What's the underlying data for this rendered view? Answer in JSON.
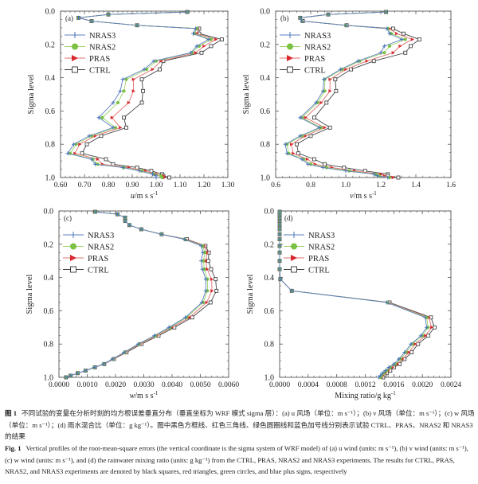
{
  "chart_data": [
    {
      "type": "line",
      "panel_label": "(a)",
      "xlabel": "u/m s-1",
      "xlabel_var": "u",
      "xlabel_unit": "/m s",
      "ylabel": "Sigma level",
      "xlim": [
        0.6,
        1.3
      ],
      "ylim": [
        1.0,
        0.0
      ],
      "xticks": [
        0.6,
        0.7,
        0.8,
        0.9,
        1.0,
        1.1,
        1.2,
        1.3
      ],
      "xtick_labels": [
        "0.60",
        "0.70",
        "0.80",
        "0.90",
        "1.00",
        "1.10",
        "1.20",
        "1.30"
      ],
      "yticks": [
        0.0,
        0.2,
        0.4,
        0.6,
        0.8,
        1.0
      ],
      "ytick_labels": [
        "0.0",
        "0.2",
        "0.4",
        "0.6",
        "0.8",
        "1.0"
      ],
      "legend": "top-left",
      "y": [
        0.005,
        0.02,
        0.04,
        0.06,
        0.085,
        0.105,
        0.135,
        0.17,
        0.21,
        0.25,
        0.3,
        0.35,
        0.41,
        0.48,
        0.55,
        0.64,
        0.7,
        0.75,
        0.8,
        0.855,
        0.89,
        0.92,
        0.94,
        0.96,
        0.98,
        0.99,
        1.0
      ],
      "series": [
        {
          "name": "NRAS3",
          "values": [
            1.13,
            0.8,
            0.675,
            0.73,
            0.92,
            1.165,
            1.155,
            1.22,
            1.17,
            1.145,
            0.99,
            0.95,
            0.86,
            0.85,
            0.82,
            0.76,
            0.82,
            0.72,
            0.655,
            0.63,
            0.73,
            0.745,
            0.86,
            0.93,
            0.985,
            1.0,
            1.0
          ]
        },
        {
          "name": "NRAS2",
          "values": [
            1.13,
            0.8,
            0.675,
            0.73,
            0.92,
            1.17,
            1.16,
            1.23,
            1.18,
            1.15,
            1.0,
            0.96,
            0.875,
            0.865,
            0.84,
            0.775,
            0.83,
            0.73,
            0.665,
            0.64,
            0.735,
            0.755,
            0.865,
            0.94,
            0.99,
            1.02,
            1.025
          ]
        },
        {
          "name": "PRAS",
          "values": [
            1.13,
            0.8,
            0.675,
            0.73,
            0.92,
            1.175,
            1.17,
            1.25,
            1.2,
            1.165,
            1.02,
            0.985,
            0.905,
            0.905,
            0.885,
            0.815,
            0.85,
            0.745,
            0.68,
            0.66,
            0.755,
            0.775,
            0.885,
            0.955,
            1.0,
            1.03,
            1.035
          ]
        },
        {
          "name": "CTRL",
          "values": [
            1.13,
            0.8,
            0.675,
            0.73,
            0.92,
            1.18,
            1.18,
            1.275,
            1.23,
            1.19,
            1.03,
            1.015,
            0.94,
            0.945,
            0.94,
            0.865,
            0.875,
            0.77,
            0.71,
            0.69,
            0.79,
            0.82,
            0.92,
            0.98,
            1.025,
            1.03,
            1.055
          ]
        }
      ]
    },
    {
      "type": "line",
      "panel_label": "(b)",
      "xlabel": "v/m s-1",
      "xlabel_var": "v",
      "xlabel_unit": "/m s",
      "ylabel": "Sigma level",
      "xlim": [
        0.6,
        1.6
      ],
      "ylim": [
        1.0,
        0.0
      ],
      "xticks": [
        0.6,
        0.8,
        1.0,
        1.2,
        1.4,
        1.6
      ],
      "xtick_labels": [
        "0.6",
        "0.8",
        "1.0",
        "1.2",
        "1.4",
        "1.6"
      ],
      "yticks": [
        0.0,
        0.2,
        0.4,
        0.6,
        0.8,
        1.0
      ],
      "ytick_labels": [
        "0.0",
        "0.2",
        "0.4",
        "0.6",
        "0.8",
        "1.0"
      ],
      "legend": "top-left",
      "y": [
        0.005,
        0.02,
        0.04,
        0.06,
        0.085,
        0.105,
        0.135,
        0.17,
        0.21,
        0.25,
        0.3,
        0.35,
        0.41,
        0.48,
        0.55,
        0.64,
        0.7,
        0.75,
        0.8,
        0.855,
        0.89,
        0.92,
        0.94,
        0.96,
        0.98,
        0.99,
        1.0
      ],
      "series": [
        {
          "name": "NRAS3",
          "values": [
            1.23,
            0.9,
            0.74,
            0.75,
            1.0,
            1.235,
            1.25,
            1.32,
            1.22,
            1.2,
            1.07,
            0.97,
            0.875,
            0.87,
            0.83,
            0.74,
            0.85,
            0.74,
            0.655,
            0.665,
            0.75,
            0.785,
            0.87,
            1.0,
            1.16,
            1.18,
            1.24
          ]
        },
        {
          "name": "NRAS2",
          "values": [
            1.23,
            0.9,
            0.74,
            0.75,
            1.0,
            1.24,
            1.26,
            1.34,
            1.25,
            1.22,
            1.08,
            0.98,
            0.88,
            0.88,
            0.84,
            0.75,
            0.86,
            0.75,
            0.665,
            0.675,
            0.76,
            0.8,
            0.89,
            1.02,
            1.17,
            1.19,
            1.25
          ]
        },
        {
          "name": "PRAS",
          "values": [
            1.23,
            0.9,
            0.74,
            0.75,
            1.0,
            1.25,
            1.29,
            1.38,
            1.31,
            1.27,
            1.12,
            1.0,
            0.91,
            0.91,
            0.86,
            0.77,
            0.88,
            0.77,
            0.69,
            0.7,
            0.78,
            0.825,
            0.92,
            1.05,
            1.2,
            1.22,
            1.27
          ]
        },
        {
          "name": "CTRL",
          "values": [
            1.23,
            0.9,
            0.74,
            0.755,
            1.005,
            1.27,
            1.33,
            1.42,
            1.37,
            1.34,
            1.16,
            1.03,
            0.94,
            0.945,
            0.89,
            0.82,
            0.91,
            0.8,
            0.72,
            0.73,
            0.82,
            0.88,
            0.99,
            1.11,
            1.24,
            1.24,
            1.3
          ]
        }
      ]
    },
    {
      "type": "line",
      "panel_label": "(c)",
      "xlabel": "w/m s-1",
      "xlabel_var": "w",
      "xlabel_unit": "/m s",
      "ylabel": "Sigma level",
      "xlim": [
        0.0,
        0.006
      ],
      "ylim": [
        1.0,
        0.0
      ],
      "xticks": [
        0.0,
        0.001,
        0.002,
        0.003,
        0.004,
        0.005,
        0.006
      ],
      "xtick_labels": [
        "0.0000",
        "0.0010",
        "0.0020",
        "0.0030",
        "0.0040",
        "0.0050",
        "0.0060"
      ],
      "yticks": [
        0.0,
        0.2,
        0.4,
        0.6,
        0.8,
        1.0
      ],
      "ytick_labels": [
        "0.0",
        "0.2",
        "0.4",
        "0.6",
        "0.8",
        "1.0"
      ],
      "legend": "top-left",
      "y": [
        0.005,
        0.02,
        0.04,
        0.06,
        0.085,
        0.11,
        0.14,
        0.17,
        0.21,
        0.25,
        0.3,
        0.35,
        0.41,
        0.48,
        0.55,
        0.64,
        0.7,
        0.75,
        0.8,
        0.85,
        0.89,
        0.92,
        0.94,
        0.96,
        0.975,
        0.99,
        1.0
      ],
      "series": [
        {
          "name": "NRAS3",
          "values": [
            0.00128,
            0.00207,
            0.00234,
            0.00234,
            0.00249,
            0.00291,
            0.00361,
            0.00443,
            0.00503,
            0.00509,
            0.00503,
            0.00507,
            0.00519,
            0.00519,
            0.00505,
            0.00447,
            0.00389,
            0.00337,
            0.0028,
            0.0023,
            0.00189,
            0.00157,
            0.00125,
            0.00093,
            0.00066,
            0.00041,
            0.00025
          ]
        },
        {
          "name": "NRAS2",
          "values": [
            0.00128,
            0.00207,
            0.00234,
            0.00234,
            0.00249,
            0.00291,
            0.00361,
            0.00445,
            0.00508,
            0.00516,
            0.00511,
            0.00514,
            0.00525,
            0.00525,
            0.0051,
            0.00452,
            0.00393,
            0.00341,
            0.00283,
            0.00232,
            0.0019,
            0.00158,
            0.00125,
            0.00093,
            0.00066,
            0.00041,
            0.00025
          ]
        },
        {
          "name": "PRAS",
          "values": [
            0.00128,
            0.00207,
            0.00234,
            0.00234,
            0.00249,
            0.00291,
            0.00362,
            0.00448,
            0.00514,
            0.00524,
            0.00519,
            0.00524,
            0.0054,
            0.00541,
            0.00522,
            0.00462,
            0.00399,
            0.00346,
            0.00287,
            0.00235,
            0.00192,
            0.00159,
            0.00126,
            0.00093,
            0.00066,
            0.00041,
            0.00025
          ]
        },
        {
          "name": "CTRL",
          "values": [
            0.00128,
            0.00207,
            0.00234,
            0.00234,
            0.00249,
            0.00291,
            0.00363,
            0.00452,
            0.00518,
            0.0053,
            0.00528,
            0.00538,
            0.00554,
            0.00557,
            0.00536,
            0.00471,
            0.00408,
            0.00352,
            0.00292,
            0.00239,
            0.00194,
            0.0016,
            0.00127,
            0.00094,
            0.00066,
            0.00041,
            0.00025
          ]
        }
      ]
    },
    {
      "type": "line",
      "panel_label": "(d)",
      "xlabel": "Mixing ratio/g kg-1",
      "xlabel_var": "",
      "xlabel_unit": "Mixing ratio/g kg",
      "ylabel": "Sigma level",
      "xlim": [
        0.0,
        0.0024
      ],
      "ylim": [
        1.0,
        0.0
      ],
      "xticks": [
        0.0,
        0.0004,
        0.0008,
        0.0012,
        0.0016,
        0.002,
        0.0024
      ],
      "xtick_labels": [
        "0.0000",
        "0.0004",
        "0.0008",
        "0.0012",
        "0.0016",
        "0.0020",
        "0.0024"
      ],
      "yticks": [
        0.0,
        0.2,
        0.4,
        0.6,
        0.8,
        1.0
      ],
      "ytick_labels": [
        "0.0",
        "0.2",
        "0.4",
        "0.6",
        "0.8",
        "1.0"
      ],
      "legend": "top-left",
      "y": [
        0.005,
        0.02,
        0.04,
        0.06,
        0.085,
        0.11,
        0.14,
        0.17,
        0.21,
        0.25,
        0.3,
        0.35,
        0.41,
        0.48,
        0.55,
        0.64,
        0.7,
        0.75,
        0.8,
        0.85,
        0.89,
        0.92,
        0.94,
        0.96,
        0.975,
        0.99,
        1.0
      ],
      "series": [
        {
          "name": "NRAS3",
          "values": [
            0,
            0,
            0,
            0,
            0,
            0,
            0,
            0,
            0,
            0,
            0,
            0,
            1e-05,
            0.00017,
            0.0015,
            0.00204,
            0.00206,
            0.00198,
            0.00184,
            0.00175,
            0.00167,
            0.0016,
            0.00153,
            0.00148,
            0.00144,
            0.00141,
            0.00139
          ]
        },
        {
          "name": "NRAS2",
          "values": [
            0,
            0,
            0,
            0,
            0,
            0,
            0,
            0,
            0,
            0,
            0,
            0,
            1e-05,
            0.00017,
            0.00151,
            0.00206,
            0.00208,
            0.002,
            0.00186,
            0.00177,
            0.00169,
            0.00162,
            0.00155,
            0.0015,
            0.00146,
            0.00143,
            0.00141
          ]
        },
        {
          "name": "PRAS",
          "values": [
            0,
            0,
            0,
            0,
            0,
            0,
            0,
            0,
            0,
            0,
            0,
            0,
            1e-05,
            0.00017,
            0.00152,
            0.00209,
            0.00213,
            0.00204,
            0.0019,
            0.00181,
            0.00172,
            0.00165,
            0.00158,
            0.00152,
            0.00148,
            0.00145,
            0.00143
          ]
        },
        {
          "name": "CTRL",
          "values": [
            0,
            0,
            0,
            0,
            0,
            0,
            0,
            0,
            0,
            0,
            0,
            0,
            1e-05,
            0.00017,
            0.00154,
            0.00212,
            0.00217,
            0.00208,
            0.00194,
            0.00185,
            0.00175,
            0.00168,
            0.0016,
            0.00155,
            0.0015,
            0.00147,
            0.00145
          ]
        }
      ]
    }
  ],
  "series_style": {
    "NRAS3": {
      "color": "#4a73b8",
      "line": "#5b7fc0",
      "marker": "plus"
    },
    "NRAS2": {
      "color": "#7cc242",
      "line": "#9fd36c",
      "marker": "circle"
    },
    "PRAS": {
      "color": "#d9272e",
      "line": "#e07070",
      "marker": "triangle"
    },
    "CTRL": {
      "color": "#333333",
      "line": "#444444",
      "marker": "square"
    }
  },
  "legend_entries": [
    "NRAS3",
    "NRAS2",
    "PRAS",
    "CTRL"
  ],
  "caption": {
    "cn_label": "图 1",
    "cn_text": "不同试验的变量在分析时刻的均方根误差垂直分布（垂直坐标为 WRF 模式 sigma 层）：(a) u 风场（单位：m s⁻¹）；(b) v 风场（单位：m s⁻¹）；(c) w 风场（单位：m s⁻¹）；(d) 雨水混合比（单位：g kg⁻¹）。图中黑色方框线、红色三角线、绿色圆圈线和蓝色加号线分别表示试验 CTRL、PRAS、NRAS2 和 NRAS3 的结果",
    "en_label": "Fig. 1",
    "en_text": "Vertical profiles of the root-mean-square errors (the vertical coordinate is the sigma system of WRF model) of (a) u wind (units: m s⁻¹), (b) v wind (units: m s⁻¹), (c) w wind (units: m s⁻¹), and (d) the rainwater mixing ratio (units: g kg⁻¹) from the CTRL, PRAS, NRAS2 and NRAS3 experiments. The results for CTRL, PRAS, NRAS2, and NRAS3 experiments are denoted by black squares, red triangles, green circles, and blue plus signs, respectively"
  }
}
